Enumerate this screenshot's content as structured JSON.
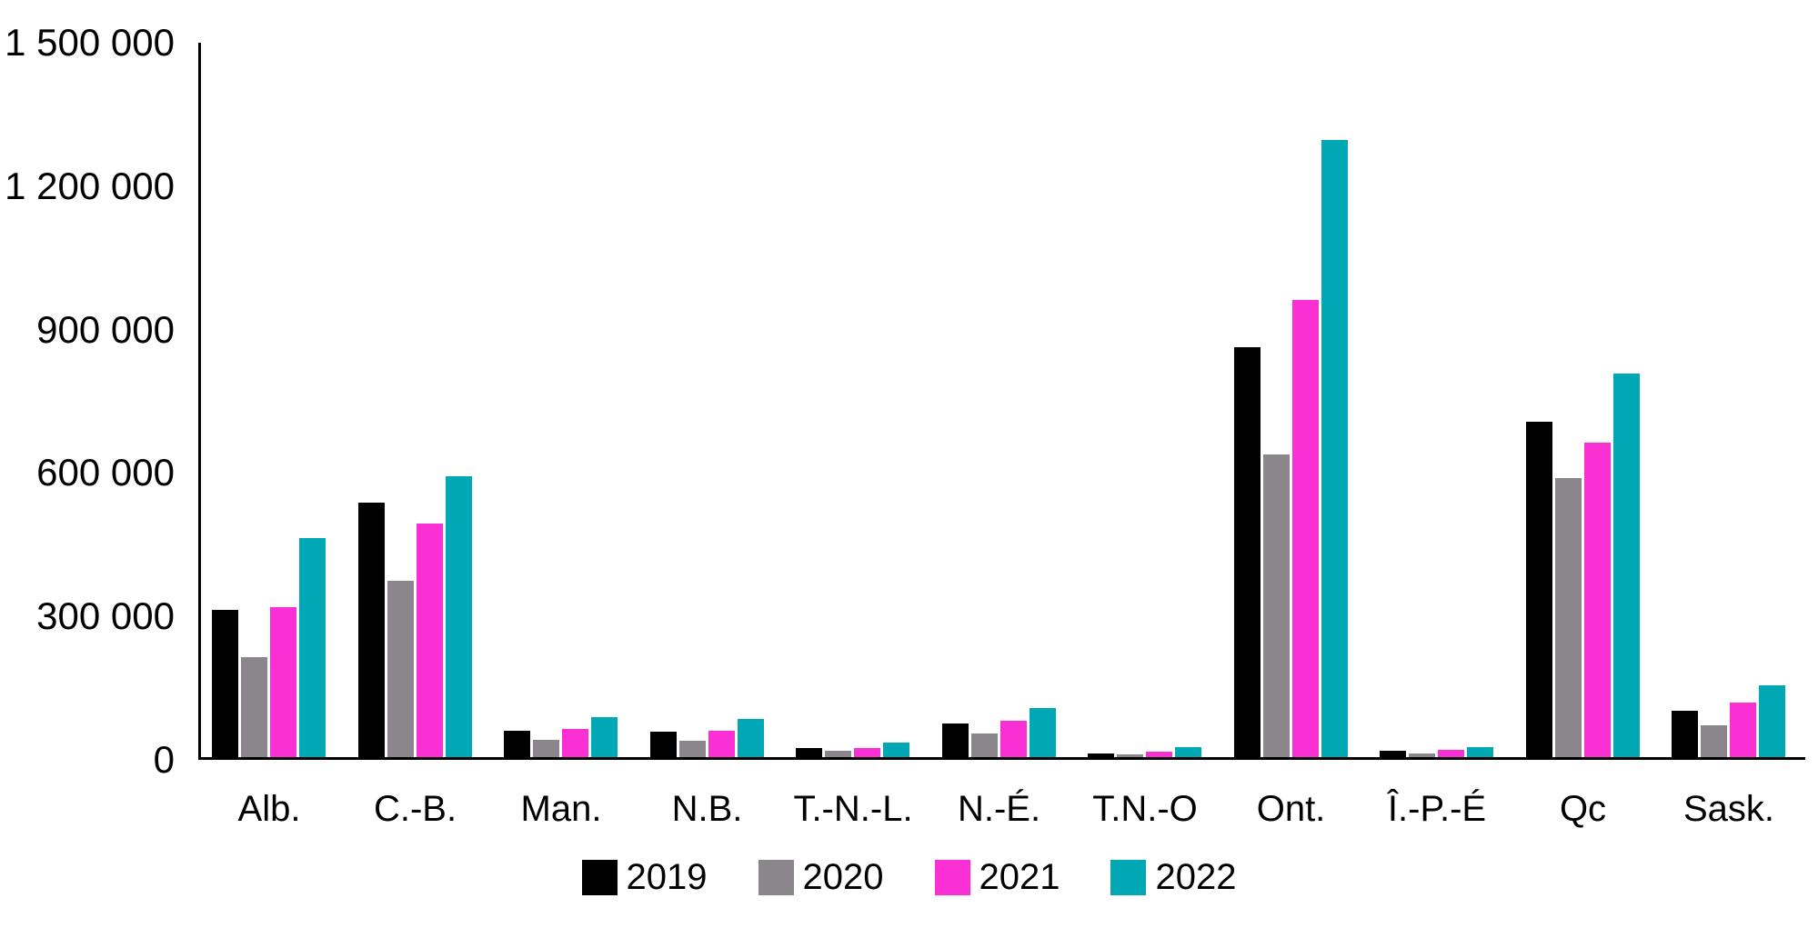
{
  "chart_data": {
    "type": "bar",
    "title": "",
    "xlabel": "",
    "ylabel": "",
    "ylim": [
      0,
      1500000
    ],
    "grid": false,
    "legend_position": "bottom",
    "categories": [
      "Alb.",
      "C.-B.",
      "Man.",
      "N.B.",
      "T.-N.-L.",
      "N.-É.",
      "T.N.-O",
      "Ont.",
      "Î.-P.-É",
      "Qc",
      "Sask."
    ],
    "yticks": [
      {
        "value": 0,
        "label": "0"
      },
      {
        "value": 300000,
        "label": "300 000"
      },
      {
        "value": 600000,
        "label": "600 000"
      },
      {
        "value": 900000,
        "label": "900 000"
      },
      {
        "value": 1200000,
        "label": "1 200 000"
      },
      {
        "value": 1500000,
        "label": "1 500 000"
      }
    ],
    "series": [
      {
        "name": "2019",
        "color": "#000000",
        "values": [
          310000,
          535000,
          56000,
          53000,
          20000,
          70000,
          8000,
          860000,
          13000,
          705000,
          97000
        ]
      },
      {
        "name": "2020",
        "color": "#8B868B",
        "values": [
          210000,
          370000,
          36000,
          34000,
          13000,
          50000,
          6000,
          635000,
          8000,
          585000,
          67000
        ]
      },
      {
        "name": "2021",
        "color": "#FB30D4",
        "values": [
          315000,
          490000,
          60000,
          55000,
          20000,
          77000,
          12000,
          960000,
          16000,
          660000,
          115000
        ]
      },
      {
        "name": "2022",
        "color": "#00A8B6",
        "values": [
          460000,
          590000,
          84000,
          81000,
          31000,
          103000,
          21000,
          1295000,
          21000,
          805000,
          150000
        ]
      }
    ]
  },
  "layout_note": "grouped vertical bar chart, legend below x-axis"
}
